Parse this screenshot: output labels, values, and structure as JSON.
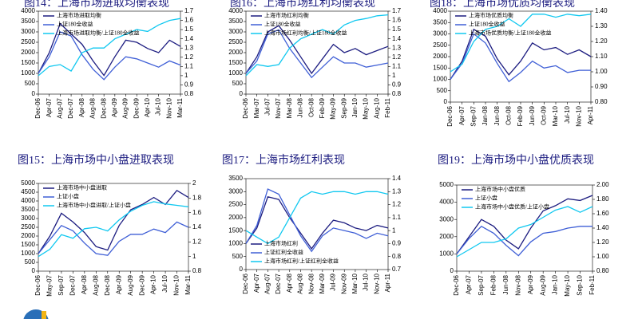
{
  "chart_data": [
    {
      "type": "line",
      "title": "图14：上海市场进取均衡表现",
      "legend": "upper left",
      "categories": [
        "Dec-06",
        "Apr-07",
        "Aug-07",
        "Dec-07",
        "Apr-08",
        "Aug-08",
        "Dec-08",
        "Apr-09",
        "Aug-09",
        "Dec-09",
        "Apr-10",
        "Jul-10",
        "Nov-10",
        "Mar-11"
      ],
      "series": [
        {
          "name": "上海市场进取均衡",
          "color": "#1c1c80",
          "values": [
            1000,
            2000,
            3400,
            2900,
            2400,
            1600,
            900,
            1800,
            2600,
            2500,
            2200,
            2000,
            2600,
            2300
          ]
        },
        {
          "name": "上证180全收益",
          "color": "#3f5fd6",
          "values": [
            1000,
            1800,
            3000,
            2800,
            1900,
            1200,
            700,
            1300,
            1800,
            1700,
            1500,
            1300,
            1600,
            1400
          ]
        },
        {
          "name": "上海市场进取均衡/上证180全收益",
          "color": "#10c8f0",
          "axis": "y2",
          "values": [
            1.0,
            1.1,
            1.12,
            1.05,
            1.25,
            1.3,
            1.3,
            1.4,
            1.45,
            1.5,
            1.48,
            1.55,
            1.6,
            1.62
          ]
        }
      ],
      "ylim": [
        0,
        4000
      ],
      "yticks": [
        0,
        500,
        1000,
        1500,
        2000,
        2500,
        3000,
        3500,
        4000
      ],
      "y2lim": [
        0.8,
        1.7
      ],
      "y2ticks": [
        0.8,
        0.9,
        1,
        1.1,
        1.2,
        1.3,
        1.4,
        1.5,
        1.6,
        1.7
      ]
    },
    {
      "type": "line",
      "title": "图16：上海市场红利均衡表现",
      "legend": "upper left",
      "categories": [
        "Dec-06",
        "Mar-07",
        "Jul-07",
        "Nov-07",
        "Mar-08",
        "Jun-08",
        "Oct-08",
        "Feb-09",
        "May-09",
        "Sep-09",
        "Jan-10",
        "May-10",
        "Aug-10",
        "Feb-11"
      ],
      "series": [
        {
          "name": "上海市场红利均衡",
          "color": "#1c1c80",
          "values": [
            1000,
            1800,
            3000,
            3300,
            2600,
            1800,
            1000,
            1700,
            2400,
            2000,
            2200,
            1900,
            2100,
            2300
          ]
        },
        {
          "name": "上证180全收益",
          "color": "#3f5fd6",
          "values": [
            1000,
            1600,
            2900,
            3100,
            2200,
            1500,
            800,
            1300,
            1800,
            1500,
            1500,
            1300,
            1400,
            1500
          ]
        },
        {
          "name": "上海市场红利均衡/上证180全收益",
          "color": "#10c8f0",
          "axis": "y2",
          "values": [
            1.0,
            1.12,
            1.1,
            1.12,
            1.3,
            1.4,
            1.45,
            1.5,
            1.45,
            1.55,
            1.6,
            1.62,
            1.65,
            1.66
          ]
        }
      ],
      "ylim": [
        0,
        4000
      ],
      "yticks": [
        0,
        500,
        1000,
        1500,
        2000,
        2500,
        3000,
        3500,
        4000
      ],
      "y2lim": [
        0.8,
        1.7
      ],
      "y2ticks": [
        0.8,
        0.9,
        1,
        1.1,
        1.2,
        1.3,
        1.4,
        1.5,
        1.6,
        1.7
      ]
    },
    {
      "type": "line",
      "title": "图18：上海市场优质均衡表现",
      "legend": "upper left",
      "categories": [
        "Dec-06",
        "Apr-07",
        "Sep-07",
        "Jan-08",
        "Jun-08",
        "Oct-08",
        "Feb-09",
        "Jun-09",
        "Oct-09",
        "Mar-10",
        "Jul-10",
        "Nov-10",
        "Apr-11"
      ],
      "series": [
        {
          "name": "上海市场优质均衡",
          "color": "#1c1c80",
          "values": [
            1000,
            1800,
            3200,
            2900,
            1900,
            1200,
            1800,
            2600,
            2300,
            2400,
            2100,
            2300,
            2000
          ]
        },
        {
          "name": "上证180全收益",
          "color": "#3f5fd6",
          "values": [
            1000,
            1700,
            3000,
            2600,
            1700,
            900,
            1300,
            1800,
            1500,
            1600,
            1300,
            1400,
            1400
          ]
        },
        {
          "name": "上海市场优质均衡/上证180全收益",
          "color": "#10c8f0",
          "axis": "y2",
          "values": [
            1.0,
            1.05,
            1.2,
            1.28,
            1.3,
            1.35,
            1.3,
            1.38,
            1.38,
            1.36,
            1.38,
            1.37,
            1.38
          ]
        }
      ],
      "ylim": [
        0,
        4000
      ],
      "yticks": [
        0,
        500,
        1000,
        1500,
        2000,
        2500,
        3000,
        3500,
        4000
      ],
      "y2lim": [
        0.8,
        1.4
      ],
      "y2ticks": [
        {
          "value": 0.8,
          "label": "0.80"
        },
        {
          "value": 0.9,
          "label": "0.90"
        },
        {
          "value": 1,
          "label": "1.00"
        },
        {
          "value": 1.1,
          "label": "1.10"
        },
        {
          "value": 1.2,
          "label": "1.20"
        },
        {
          "value": 1.3,
          "label": "1.30"
        },
        {
          "value": 1.4,
          "label": "1.40"
        }
      ]
    },
    {
      "type": "line",
      "title": "图15：上海市场中小盘进取表现",
      "legend": "upper left",
      "categories": [
        "Dec-06",
        "May-07",
        "Sep-07",
        "Dec-07",
        "Apr-08",
        "Aug-08",
        "Dec-08",
        "Apr-09",
        "Aug-09",
        "Dec-09",
        "Apr-10",
        "Jul-10",
        "Nov-10",
        "Mar-11"
      ],
      "series": [
        {
          "name": "上海市场中小盘进取",
          "color": "#1c1c80",
          "values": [
            1000,
            2000,
            3300,
            2800,
            2200,
            1400,
            1200,
            2600,
            3500,
            3800,
            4200,
            3800,
            4600,
            4200
          ]
        },
        {
          "name": "上证小盘",
          "color": "#3f5fd6",
          "values": [
            1000,
            1800,
            2600,
            2300,
            1600,
            1000,
            900,
            1700,
            2100,
            2100,
            2400,
            2200,
            2800,
            2500
          ]
        },
        {
          "name": "上海市场中小盘进取/上证小盘",
          "color": "#10c8f0",
          "axis": "y2",
          "values": [
            1.0,
            1.1,
            1.3,
            1.25,
            1.38,
            1.4,
            1.35,
            1.5,
            1.62,
            1.7,
            1.75,
            1.72,
            1.7,
            1.68
          ]
        }
      ],
      "ylim": [
        0,
        5000
      ],
      "yticks": [
        0,
        500,
        1000,
        1500,
        2000,
        2500,
        3000,
        3500,
        4000,
        4500,
        5000
      ],
      "y2lim": [
        0.8,
        2
      ],
      "y2ticks": [
        0.8,
        1,
        1.2,
        1.4,
        1.6,
        1.8,
        2
      ]
    },
    {
      "type": "line",
      "title": "图17：上海市场红利表现",
      "legend": "lower left",
      "categories": [
        "Dec-06",
        "Apr-07",
        "Aug-07",
        "Dec-07",
        "Apr-08",
        "Aug-08",
        "Nov-08",
        "Mar-09",
        "Jul-09",
        "Nov-09",
        "Mar-10",
        "Jul-10",
        "Nov-10",
        "Apr-11"
      ],
      "series": [
        {
          "name": "上海市场红利",
          "color": "#1c1c80",
          "values": [
            1000,
            1600,
            2800,
            2700,
            2000,
            1400,
            800,
            1400,
            1900,
            1800,
            1600,
            1500,
            1700,
            1600
          ]
        },
        {
          "name": "上证红利全收益",
          "color": "#3f5fd6",
          "values": [
            1000,
            1700,
            3100,
            2900,
            2100,
            1300,
            700,
            1300,
            1600,
            1500,
            1400,
            1200,
            1400,
            1300
          ]
        },
        {
          "name": "上海市场红利/上证红利全收益",
          "color": "#10c8f0",
          "axis": "y2",
          "values": [
            1.0,
            0.95,
            0.9,
            0.95,
            1.1,
            1.25,
            1.3,
            1.28,
            1.3,
            1.3,
            1.28,
            1.3,
            1.3,
            1.28
          ]
        }
      ],
      "ylim": [
        0,
        3500
      ],
      "yticks": [
        0,
        500,
        1000,
        1500,
        2000,
        2500,
        3000,
        3500
      ],
      "y2lim": [
        0.7,
        1.4
      ],
      "y2ticks": [
        0.7,
        0.8,
        0.9,
        1,
        1.1,
        1.2,
        1.3,
        1.4
      ]
    },
    {
      "type": "line",
      "title": "图19：上海市场中小盘优质表现",
      "legend": "upper left",
      "categories": [
        "Dec-06",
        "Apr-07",
        "Sep-07",
        "Feb-08",
        "Jun-08",
        "Nov-08",
        "Apr-09",
        "Aug-09",
        "Jan-10",
        "May-10",
        "Sep-10",
        "Feb-11"
      ],
      "series": [
        {
          "name": "上海市场中小盘优质",
          "color": "#1c1c80",
          "values": [
            1000,
            2000,
            3000,
            2600,
            1800,
            1300,
            2500,
            3500,
            3800,
            4200,
            4100,
            4400
          ]
        },
        {
          "name": "上证小盘",
          "color": "#3f5fd6",
          "values": [
            1000,
            1900,
            2600,
            2200,
            1500,
            900,
            1700,
            2200,
            2300,
            2500,
            2600,
            2600
          ]
        },
        {
          "name": "上海市场中小盘优质/上证小盘",
          "color": "#10c8f0",
          "axis": "y2",
          "values": [
            1.0,
            1.1,
            1.2,
            1.2,
            1.25,
            1.4,
            1.45,
            1.55,
            1.65,
            1.7,
            1.62,
            1.7
          ]
        }
      ],
      "ylim": [
        0,
        5000
      ],
      "yticks": [
        0,
        1000,
        2000,
        3000,
        4000,
        5000
      ],
      "y2lim": [
        0.8,
        2
      ],
      "y2ticks": [
        {
          "value": 0.8,
          "label": "0.80"
        },
        {
          "value": 1,
          "label": "1.00"
        },
        {
          "value": 1.2,
          "label": "1.20"
        },
        {
          "value": 1.4,
          "label": "1.40"
        },
        {
          "value": 1.6,
          "label": "1.60"
        },
        {
          "value": 1.8,
          "label": "1.80"
        },
        {
          "value": 2,
          "label": "2.00"
        }
      ]
    }
  ]
}
